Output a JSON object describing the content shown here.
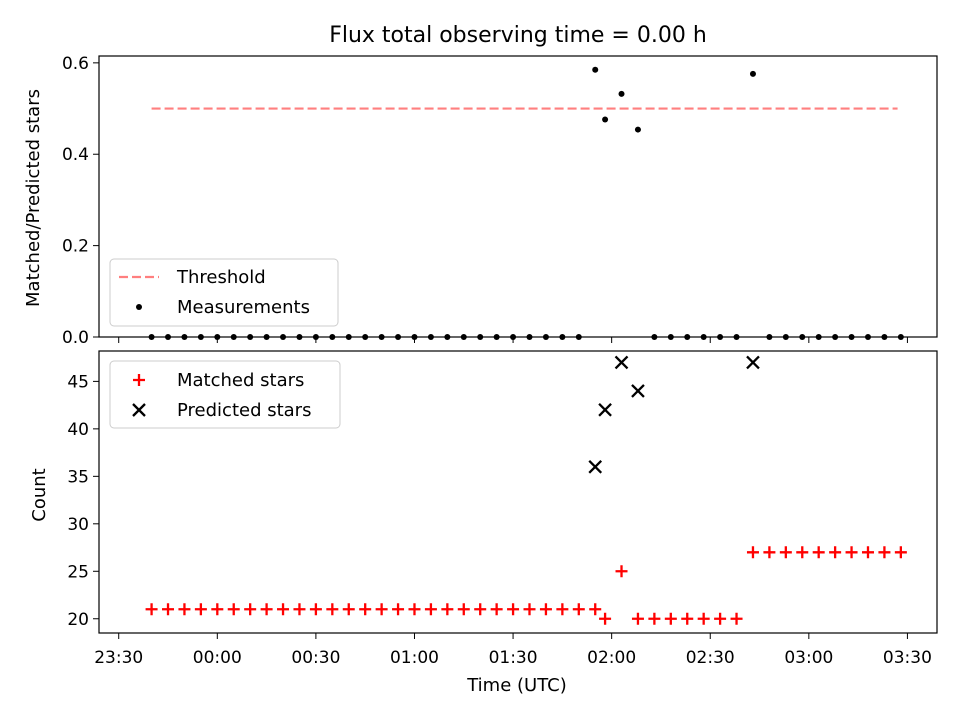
{
  "chart_data": [
    {
      "type": "scatter",
      "title": "Flux total observing time = 0.00 h",
      "xlabel": "",
      "ylabel": "Matched/Predicted stars",
      "ylim": [
        0,
        0.615
      ],
      "yticks": [
        "0.0",
        "0.2",
        "0.4",
        "0.6"
      ],
      "legend": {
        "position": "lower-left",
        "entries": [
          "Threshold",
          "Measurements"
        ]
      },
      "threshold": {
        "name": "Threshold",
        "value": 0.5,
        "x_start": "23:40",
        "x_end": "03:27",
        "color": "#ff7f7f",
        "style": "dashed"
      },
      "series": [
        {
          "name": "Measurements",
          "marker": "dot",
          "color": "#000000",
          "x": [
            "23:40",
            "23:45",
            "23:50",
            "23:55",
            "00:00",
            "00:05",
            "00:10",
            "00:15",
            "00:20",
            "00:25",
            "00:30",
            "00:35",
            "00:40",
            "00:45",
            "00:50",
            "00:55",
            "01:00",
            "01:05",
            "01:10",
            "01:15",
            "01:20",
            "01:25",
            "01:30",
            "01:35",
            "01:40",
            "01:45",
            "01:50",
            "01:55",
            "01:58",
            "02:03",
            "02:08",
            "02:13",
            "02:18",
            "02:23",
            "02:28",
            "02:33",
            "02:38",
            "02:43",
            "02:48",
            "02:53",
            "02:58",
            "03:03",
            "03:08",
            "03:13",
            "03:18",
            "03:23",
            "03:28"
          ],
          "y": [
            0,
            0,
            0,
            0,
            0,
            0,
            0,
            0,
            0,
            0,
            0,
            0,
            0,
            0,
            0,
            0,
            0,
            0,
            0,
            0,
            0,
            0,
            0,
            0,
            0,
            0,
            0,
            0.585,
            0.476,
            0.532,
            0.454,
            0,
            0,
            0,
            0,
            0,
            0,
            0.576,
            0,
            0,
            0,
            0,
            0,
            0,
            0,
            0,
            0
          ]
        }
      ]
    },
    {
      "type": "scatter",
      "title": "",
      "xlabel": "Time (UTC)",
      "ylabel": "Count",
      "ylim": [
        18.5,
        48.2
      ],
      "yticks": [
        "20",
        "25",
        "30",
        "35",
        "40",
        "45"
      ],
      "xticks": [
        "23:30",
        "00:00",
        "00:30",
        "01:00",
        "01:30",
        "02:00",
        "02:30",
        "03:00",
        "03:30"
      ],
      "legend": {
        "position": "upper-left",
        "entries": [
          "Matched stars",
          "Predicted stars"
        ]
      },
      "series": [
        {
          "name": "Matched stars",
          "marker": "plus",
          "color": "#ff0000",
          "x": [
            "23:40",
            "23:45",
            "23:50",
            "23:55",
            "00:00",
            "00:05",
            "00:10",
            "00:15",
            "00:20",
            "00:25",
            "00:30",
            "00:35",
            "00:40",
            "00:45",
            "00:50",
            "00:55",
            "01:00",
            "01:05",
            "01:10",
            "01:15",
            "01:20",
            "01:25",
            "01:30",
            "01:35",
            "01:40",
            "01:45",
            "01:50",
            "01:55",
            "01:58",
            "02:03",
            "02:08",
            "02:13",
            "02:18",
            "02:23",
            "02:28",
            "02:33",
            "02:38",
            "02:43",
            "02:48",
            "02:53",
            "02:58",
            "03:03",
            "03:08",
            "03:13",
            "03:18",
            "03:23",
            "03:28"
          ],
          "y": [
            21,
            21,
            21,
            21,
            21,
            21,
            21,
            21,
            21,
            21,
            21,
            21,
            21,
            21,
            21,
            21,
            21,
            21,
            21,
            21,
            21,
            21,
            21,
            21,
            21,
            21,
            21,
            21,
            20,
            25,
            20,
            20,
            20,
            20,
            20,
            20,
            20,
            27,
            27,
            27,
            27,
            27,
            27,
            27,
            27,
            27,
            27
          ]
        },
        {
          "name": "Predicted stars",
          "marker": "x",
          "color": "#000000",
          "x": [
            "01:55",
            "01:58",
            "02:03",
            "02:08",
            "02:43"
          ],
          "y": [
            36,
            42,
            47,
            44,
            47
          ]
        }
      ]
    }
  ]
}
